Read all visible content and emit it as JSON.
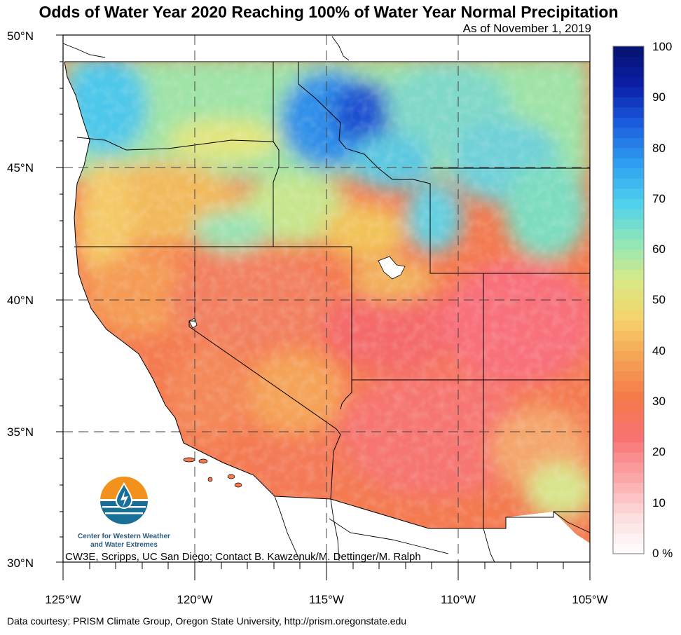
{
  "title": "Odds of Water Year 2020 Reaching 100% of Water Year Normal Precipitation",
  "subtitle": "As of November 1, 2019",
  "map": {
    "region": "Western United States",
    "lat_range": [
      30,
      50
    ],
    "lon_range": [
      -125,
      -105
    ],
    "lat_labels": [
      "50°N",
      "45°N",
      "40°N",
      "35°N",
      "30°N"
    ],
    "lon_labels": [
      "125°W",
      "120°W",
      "115°W",
      "110°W",
      "105°W"
    ],
    "gridlines": "dashed at every 5 degrees",
    "projection": "cylindrical equidistant"
  },
  "colorbar": {
    "ticks": [
      "100",
      "90",
      "80",
      "70",
      "60",
      "50",
      "40",
      "30",
      "20",
      "10",
      "0 %"
    ],
    "min": 0,
    "max": 100,
    "colors_low_to_high": [
      "#ffffff",
      "#fcdcdc",
      "#fba4a4",
      "#f87272",
      "#f47a4a",
      "#f5a254",
      "#f6d26a",
      "#d9ea86",
      "#8ee6b8",
      "#4ed0ee",
      "#2f9ff0",
      "#1c5fe0",
      "#0a1ea8",
      "#05136e"
    ]
  },
  "logo": {
    "name": "CW3E logo",
    "text_line1": "Center for Western Weather",
    "text_line2": "and Water Extremes",
    "colors": [
      "#f2921c",
      "#1a6f99"
    ]
  },
  "contact": "CW3E, Scripps, UC San Diego; Contact B. Kawzenuk/M. Dettinger/M. Ralph",
  "credit": "Data courtesy: PRISM Climate Group, Oregon State University, http://prism.oregonstate.edu"
}
